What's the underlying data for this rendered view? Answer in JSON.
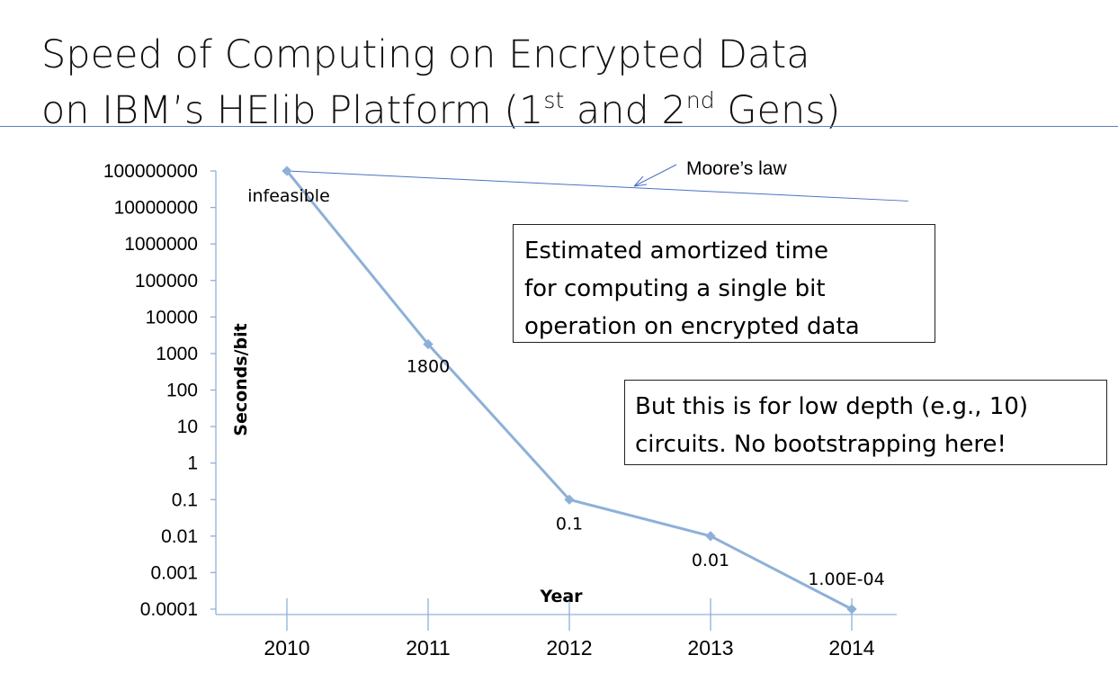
{
  "title": {
    "line1": "Speed of Computing on Encrypted Data",
    "line2_pre": "on IBM’s HElib Platform (1",
    "sup1": "st",
    "line2_mid": " and 2",
    "sup2": "nd",
    "line2_post": " Gens)"
  },
  "notes": {
    "box1": [
      "Estimated amortized time",
      "for computing a single bit",
      "operation on encrypted data"
    ],
    "box2": [
      "But this is for low depth (e.g., 10)",
      "circuits. No bootstrapping here!"
    ]
  },
  "chart_data": {
    "type": "line",
    "x": [
      2010,
      2011,
      2012,
      2013,
      2014
    ],
    "xticks": [
      "2010",
      "2011",
      "2012",
      "2013",
      "2014"
    ],
    "yticks": [
      "100000000",
      "10000000",
      "1000000",
      "100000",
      "10000",
      "1000",
      "100",
      "10",
      "1",
      "0.1",
      "0.01",
      "0.001",
      "0.0001"
    ],
    "ylim": [
      0.0001,
      100000000
    ],
    "yscale": "log",
    "xlabel": "Year",
    "ylabel": "Seconds/bit",
    "grid": false,
    "series": [
      {
        "values": [
          100000000,
          1800,
          0.1,
          0.01,
          0.0001
        ],
        "labels": [
          "infeasible",
          "1800",
          "0.1",
          "0.01",
          "1.00E-04"
        ],
        "color": "#8eb0d8"
      }
    ],
    "annotation": {
      "text": "Moore’s law",
      "line": {
        "x": [
          2010,
          2014.4
        ],
        "y": [
          100000000,
          15000000
        ]
      },
      "color": "#4a72c4"
    }
  }
}
